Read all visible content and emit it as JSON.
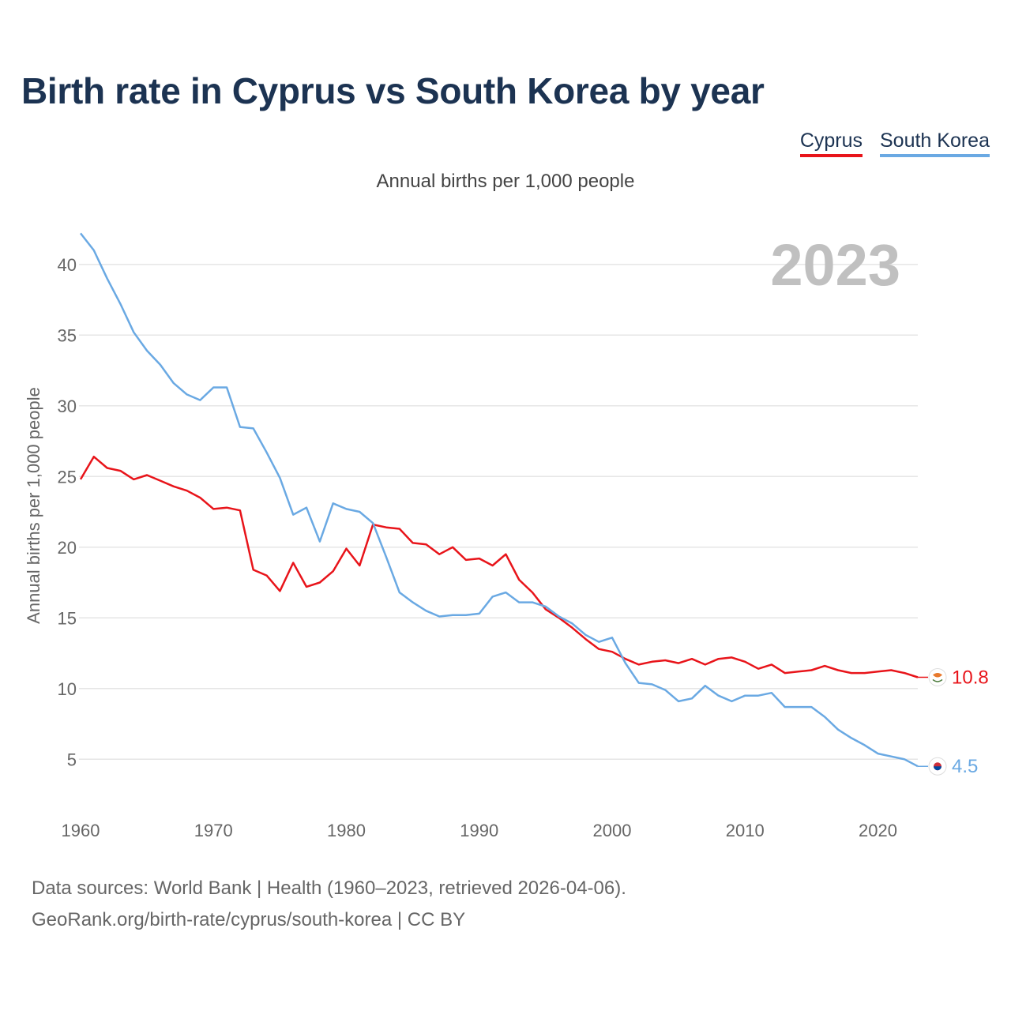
{
  "title": "Birth rate in Cyprus vs South Korea by year",
  "subtitle": "Annual births per 1,000 people",
  "legend": [
    "Cyprus",
    "South Korea"
  ],
  "footer": {
    "line1": "Data sources: World Bank | Health (1960–2023, retrieved 2026-04-06).",
    "line2": "GeoRank.org/birth-rate/cyprus/south-korea | CC BY"
  },
  "colors": {
    "cyprus": "#e8141a",
    "south_korea": "#6aa9e3",
    "title": "#1c3352",
    "year": "#c0c0c0",
    "grid": "#e6e6e6"
  },
  "chart_data": {
    "type": "line",
    "title": "Birth rate in Cyprus vs South Korea by year",
    "ylabel": "Annual births per 1,000 people",
    "xlabel": "",
    "year_label": "2023",
    "x": [
      1960,
      1961,
      1962,
      1963,
      1964,
      1965,
      1966,
      1967,
      1968,
      1969,
      1970,
      1971,
      1972,
      1973,
      1974,
      1975,
      1976,
      1977,
      1978,
      1979,
      1980,
      1981,
      1982,
      1983,
      1984,
      1985,
      1986,
      1987,
      1988,
      1989,
      1990,
      1991,
      1992,
      1993,
      1994,
      1995,
      1996,
      1997,
      1998,
      1999,
      2000,
      2001,
      2002,
      2003,
      2004,
      2005,
      2006,
      2007,
      2008,
      2009,
      2010,
      2011,
      2012,
      2013,
      2014,
      2015,
      2016,
      2017,
      2018,
      2019,
      2020,
      2021,
      2022,
      2023
    ],
    "series": [
      {
        "name": "Cyprus",
        "color": "#e8141a",
        "end_label": "10.8",
        "values": [
          24.8,
          26.4,
          25.6,
          25.4,
          24.8,
          25.1,
          24.7,
          24.3,
          24.0,
          23.5,
          22.7,
          22.8,
          22.6,
          18.4,
          18.0,
          16.9,
          18.9,
          17.2,
          17.5,
          18.3,
          19.9,
          18.7,
          21.6,
          21.4,
          21.3,
          20.3,
          20.2,
          19.5,
          20.0,
          19.1,
          19.2,
          18.7,
          19.5,
          17.7,
          16.8,
          15.6,
          15.0,
          14.3,
          13.5,
          12.8,
          12.6,
          12.1,
          11.7,
          11.9,
          12.0,
          11.8,
          12.1,
          11.7,
          12.1,
          12.2,
          11.9,
          11.4,
          11.7,
          11.1,
          11.2,
          11.3,
          11.6,
          11.3,
          11.1,
          11.1,
          11.2,
          11.3,
          11.1,
          10.8
        ]
      },
      {
        "name": "South Korea",
        "color": "#6aa9e3",
        "end_label": "4.5",
        "values": [
          42.2,
          41.0,
          39.0,
          37.2,
          35.2,
          33.9,
          32.9,
          31.6,
          30.8,
          30.4,
          31.3,
          31.3,
          28.5,
          28.4,
          26.7,
          24.9,
          22.3,
          22.8,
          20.4,
          23.1,
          22.7,
          22.5,
          21.7,
          19.3,
          16.8,
          16.1,
          15.5,
          15.1,
          15.2,
          15.2,
          15.3,
          16.5,
          16.8,
          16.1,
          16.1,
          15.8,
          15.1,
          14.6,
          13.8,
          13.3,
          13.6,
          11.8,
          10.4,
          10.3,
          9.9,
          9.1,
          9.3,
          10.2,
          9.5,
          9.1,
          9.5,
          9.5,
          9.7,
          8.7,
          8.7,
          8.7,
          8.0,
          7.1,
          6.5,
          6.0,
          5.4,
          5.2,
          5.0,
          4.5
        ]
      }
    ],
    "xlim": [
      1960,
      2023
    ],
    "ylim": [
      2,
      42.5
    ],
    "yticks": [
      5,
      10,
      15,
      20,
      25,
      30,
      35,
      40
    ],
    "xticks": [
      1960,
      1970,
      1980,
      1990,
      2000,
      2010,
      2020
    ],
    "grid": true
  }
}
